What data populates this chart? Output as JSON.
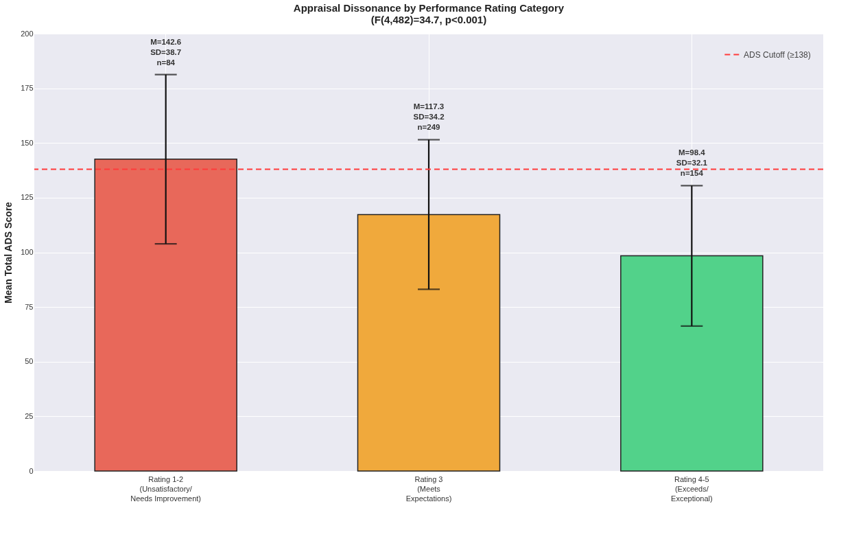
{
  "chart_data": {
    "type": "bar",
    "title": "Appraisal Dissonance by Performance Rating Category\n(F(4,482)=34.7, p<0.001)",
    "ylabel": "Mean Total ADS Score",
    "categories": [
      "Rating 1-2\n(Unsatisfactory/\nNeeds Improvement)",
      "Rating 3\n(Meets\nExpectations)",
      "Rating 4-5\n(Exceeds/\nExceptional)"
    ],
    "values": [
      142.6,
      117.3,
      98.4
    ],
    "colors": [
      "#e8685a",
      "#f0a93c",
      "#52d28a"
    ],
    "errors": [
      38.7,
      34.2,
      32.1
    ],
    "annotations": [
      {
        "text": "M=142.6\nSD=38.7\nn=84",
        "x": "Rating 1-2\n(Unsatisfactory/\nNeeds Improvement)",
        "y": 181.3
      },
      {
        "text": "M=117.3\nSD=34.2\nn=249",
        "x": "Rating 3\n(Meets\nExpectations)",
        "y": 151.5
      },
      {
        "text": "M=98.4\nSD=32.1\nn=154",
        "x": "Rating 4-5\n(Exceeds/\nExceptional)",
        "y": 130.5
      }
    ],
    "ylim": [
      0,
      200
    ],
    "yticks": [
      0,
      25,
      50,
      75,
      100,
      125,
      150,
      175,
      200
    ],
    "ref_lines": [
      {
        "axis": "y",
        "value": 138,
        "label": "ADS Cutoff (≥138)",
        "color": "#ff3b3b",
        "line_style": "dashed"
      }
    ],
    "grid": true,
    "legend": "top right"
  }
}
